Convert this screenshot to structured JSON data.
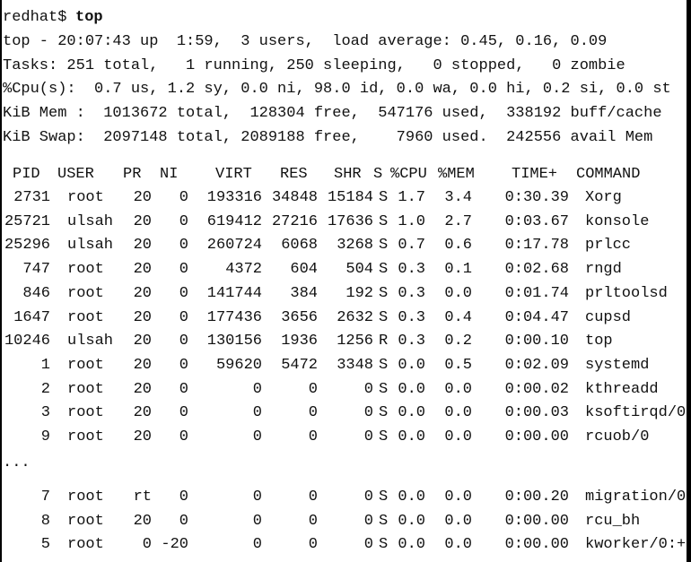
{
  "prompt": "redhat$",
  "command": "top",
  "summary": [
    "top - 20:07:43 up  1:59,  3 users,  load average: 0.45, 0.16, 0.09",
    "Tasks: 251 total,   1 running, 250 sleeping,   0 stopped,   0 zombie",
    "%Cpu(s):  0.7 us, 1.2 sy, 0.0 ni, 98.0 id, 0.0 wa, 0.0 hi, 0.2 si, 0.0 st",
    "KiB Mem :  1013672 total,  128304 free,  547176 used,  338192 buff/cache",
    "KiB Swap:  2097148 total, 2089188 free,    7960 used.  242556 avail Mem"
  ],
  "table": {
    "header": [
      "PID",
      "USER",
      "PR",
      "NI",
      "VIRT",
      "RES",
      "SHR",
      "S",
      "%CPU",
      "%MEM",
      "TIME+",
      "COMMAND"
    ],
    "rows": [
      [
        "2731",
        "root",
        "20",
        "0",
        "193316",
        "34848",
        "15184",
        "S",
        "1.7",
        "3.4",
        "0:30.39",
        "Xorg"
      ],
      [
        "25721",
        "ulsah",
        "20",
        "0",
        "619412",
        "27216",
        "17636",
        "S",
        "1.0",
        "2.7",
        "0:03.67",
        "konsole"
      ],
      [
        "25296",
        "ulsah",
        "20",
        "0",
        "260724",
        "6068",
        "3268",
        "S",
        "0.7",
        "0.6",
        "0:17.78",
        "prlcc"
      ],
      [
        "747",
        "root",
        "20",
        "0",
        "4372",
        "604",
        "504",
        "S",
        "0.3",
        "0.1",
        "0:02.68",
        "rngd"
      ],
      [
        "846",
        "root",
        "20",
        "0",
        "141744",
        "384",
        "192",
        "S",
        "0.3",
        "0.0",
        "0:01.74",
        "prltoolsd"
      ],
      [
        "1647",
        "root",
        "20",
        "0",
        "177436",
        "3656",
        "2632",
        "S",
        "0.3",
        "0.4",
        "0:04.47",
        "cupsd"
      ],
      [
        "10246",
        "ulsah",
        "20",
        "0",
        "130156",
        "1936",
        "1256",
        "R",
        "0.3",
        "0.2",
        "0:00.10",
        "top"
      ],
      [
        "1",
        "root",
        "20",
        "0",
        "59620",
        "5472",
        "3348",
        "S",
        "0.0",
        "0.5",
        "0:02.09",
        "systemd"
      ],
      [
        "2",
        "root",
        "20",
        "0",
        "0",
        "0",
        "0",
        "S",
        "0.0",
        "0.0",
        "0:00.02",
        "kthreadd"
      ],
      [
        "3",
        "root",
        "20",
        "0",
        "0",
        "0",
        "0",
        "S",
        "0.0",
        "0.0",
        "0:00.03",
        "ksoftirqd/0"
      ],
      [
        "9",
        "root",
        "20",
        "0",
        "0",
        "0",
        "0",
        "S",
        "0.0",
        "0.0",
        "0:00.00",
        "rcuob/0"
      ]
    ],
    "ellipsis": "...",
    "more_rows": [
      [
        "7",
        "root",
        "rt",
        "0",
        "0",
        "0",
        "0",
        "S",
        "0.0",
        "0.0",
        "0:00.20",
        "migration/0"
      ],
      [
        "8",
        "root",
        "20",
        "0",
        "0",
        "0",
        "0",
        "S",
        "0.0",
        "0.0",
        "0:00.00",
        "rcu_bh"
      ],
      [
        "5",
        "root",
        "0",
        "-20",
        "0",
        "0",
        "0",
        "S",
        "0.0",
        "0.0",
        "0:00.00",
        "kworker/0:+"
      ]
    ]
  }
}
